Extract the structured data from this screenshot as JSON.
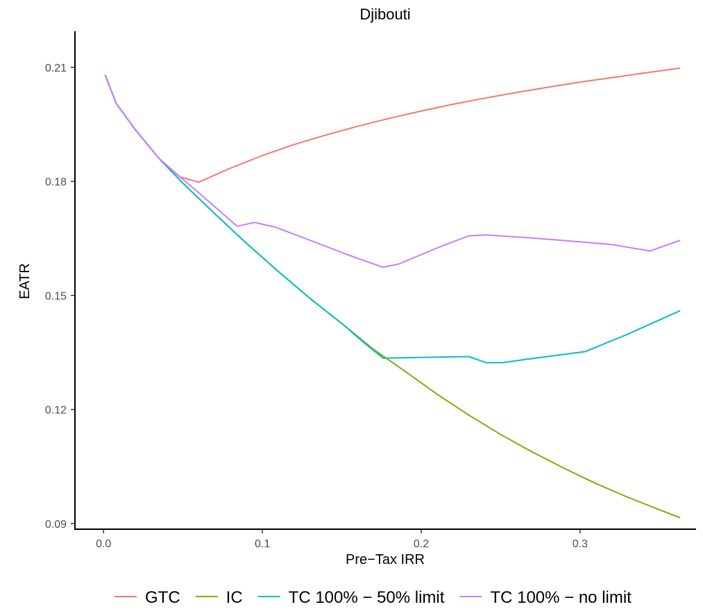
{
  "chart_data": {
    "type": "line",
    "title": "Djibouti",
    "xlabel": "Pre−Tax IRR",
    "ylabel": "EATR",
    "xlim": [
      -0.018,
      0.373
    ],
    "ylim": [
      0.0885,
      0.2195
    ],
    "x_ticks": [
      0.0,
      0.1,
      0.2,
      0.3
    ],
    "x_tick_labels": [
      "0.0",
      "0.1",
      "0.2",
      "0.3"
    ],
    "y_ticks": [
      0.09,
      0.12,
      0.15,
      0.18,
      0.21
    ],
    "y_tick_labels": [
      "0.09",
      "0.12",
      "0.15",
      "0.18",
      "0.21"
    ],
    "grid": false,
    "legend_position": "bottom",
    "series": [
      {
        "name": "GTC",
        "color": "#F8766D",
        "points": [
          [
            0.001,
            0.208
          ],
          [
            0.008,
            0.2005
          ],
          [
            0.02,
            0.1936
          ],
          [
            0.035,
            0.186
          ],
          [
            0.048,
            0.1812
          ],
          [
            0.06,
            0.1798
          ],
          [
            0.08,
            0.1835
          ],
          [
            0.1,
            0.1868
          ],
          [
            0.12,
            0.1897
          ],
          [
            0.14,
            0.1922
          ],
          [
            0.16,
            0.1945
          ],
          [
            0.18,
            0.1966
          ],
          [
            0.2,
            0.1985
          ],
          [
            0.22,
            0.2003
          ],
          [
            0.24,
            0.2019
          ],
          [
            0.26,
            0.2034
          ],
          [
            0.28,
            0.2048
          ],
          [
            0.3,
            0.2061
          ],
          [
            0.32,
            0.2073
          ],
          [
            0.34,
            0.2085
          ],
          [
            0.363,
            0.2098
          ]
        ]
      },
      {
        "name": "IC",
        "color": "#7CAE00",
        "points": [
          [
            0.001,
            0.208
          ],
          [
            0.008,
            0.2005
          ],
          [
            0.02,
            0.1936
          ],
          [
            0.035,
            0.186
          ],
          [
            0.05,
            0.1795
          ],
          [
            0.07,
            0.1715
          ],
          [
            0.09,
            0.1637
          ],
          [
            0.11,
            0.1563
          ],
          [
            0.13,
            0.1492
          ],
          [
            0.15,
            0.1426
          ],
          [
            0.17,
            0.1358
          ],
          [
            0.19,
            0.13
          ],
          [
            0.21,
            0.124
          ],
          [
            0.23,
            0.1185
          ],
          [
            0.25,
            0.1134
          ],
          [
            0.27,
            0.1088
          ],
          [
            0.29,
            0.1045
          ],
          [
            0.31,
            0.1005
          ],
          [
            0.33,
            0.0969
          ],
          [
            0.35,
            0.0936
          ],
          [
            0.363,
            0.0915
          ]
        ]
      },
      {
        "name": "TC 100% − 50% limit",
        "color": "#00BFC4",
        "points": [
          [
            0.001,
            0.208
          ],
          [
            0.008,
            0.2005
          ],
          [
            0.02,
            0.1936
          ],
          [
            0.035,
            0.186
          ],
          [
            0.05,
            0.1795
          ],
          [
            0.07,
            0.1715
          ],
          [
            0.09,
            0.1637
          ],
          [
            0.11,
            0.1563
          ],
          [
            0.13,
            0.1492
          ],
          [
            0.15,
            0.1426
          ],
          [
            0.165,
            0.1372
          ],
          [
            0.176,
            0.1335
          ],
          [
            0.2,
            0.1337
          ],
          [
            0.23,
            0.1339
          ],
          [
            0.241,
            0.1323
          ],
          [
            0.251,
            0.1323
          ],
          [
            0.27,
            0.1334
          ],
          [
            0.303,
            0.1352
          ],
          [
            0.33,
            0.1398
          ],
          [
            0.363,
            0.146
          ]
        ]
      },
      {
        "name": "TC 100% − no limit",
        "color": "#C77CFF",
        "points": [
          [
            0.001,
            0.208
          ],
          [
            0.008,
            0.2005
          ],
          [
            0.02,
            0.1936
          ],
          [
            0.035,
            0.186
          ],
          [
            0.048,
            0.1812
          ],
          [
            0.06,
            0.177
          ],
          [
            0.084,
            0.1682
          ],
          [
            0.095,
            0.1692
          ],
          [
            0.108,
            0.168
          ],
          [
            0.13,
            0.1645
          ],
          [
            0.155,
            0.1605
          ],
          [
            0.176,
            0.1574
          ],
          [
            0.186,
            0.1583
          ],
          [
            0.21,
            0.1625
          ],
          [
            0.23,
            0.1657
          ],
          [
            0.241,
            0.1659
          ],
          [
            0.27,
            0.1651
          ],
          [
            0.3,
            0.1641
          ],
          [
            0.32,
            0.1634
          ],
          [
            0.344,
            0.1617
          ],
          [
            0.363,
            0.1645
          ]
        ]
      }
    ]
  }
}
